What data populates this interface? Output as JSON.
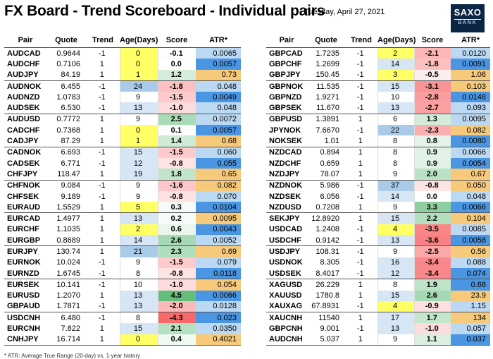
{
  "title": "FX Board - Trend Scoreboard - Individual pairs",
  "date": "Tuesday, April 27, 2021",
  "logo": {
    "line1": "SAXO",
    "line2": "BANK"
  },
  "headers": [
    "Pair",
    "Quote",
    "Trend",
    "Age(Days)",
    "Score",
    "ATR*"
  ],
  "footnote": "* ATR: Average True Range (20-day) vs. 1-year history",
  "colors": {
    "age_yellow": "#ffff66",
    "age_blue": "#b9d5ee",
    "atr_blue": "#3f8fe0",
    "atr_light": "#bcd9f3",
    "atr_orange": "#f7c97a",
    "score_red": "#f4a7a7",
    "score_green": "#a9d9a6"
  },
  "left_table": [
    {
      "pair": "AUDCAD",
      "quote": "0.9644",
      "trend": "-1",
      "age": "0",
      "score": "-0.1",
      "atr": "0.0065"
    },
    {
      "pair": "AUDCHF",
      "quote": "0.7106",
      "trend": "1",
      "age": "0",
      "score": "0.0",
      "atr": "0.0057"
    },
    {
      "pair": "AUDJPY",
      "quote": "84.19",
      "trend": "1",
      "age": "1",
      "score": "1.2",
      "atr": "0.73"
    },
    {
      "pair": "AUDNOK",
      "quote": "6.455",
      "trend": "-1",
      "age": "24",
      "score": "-1.8",
      "atr": "0.048"
    },
    {
      "pair": "AUDNZD",
      "quote": "1.0783",
      "trend": "-1",
      "age": "9",
      "score": "-1.5",
      "atr": "0.0049"
    },
    {
      "pair": "AUDSEK",
      "quote": "6.530",
      "trend": "-1",
      "age": "13",
      "score": "-1.0",
      "atr": "0.048"
    },
    {
      "pair": "AUDUSD",
      "quote": "0.7772",
      "trend": "1",
      "age": "9",
      "score": "2.5",
      "atr": "0.0072"
    },
    {
      "pair": "CADCHF",
      "quote": "0.7368",
      "trend": "1",
      "age": "0",
      "score": "0.1",
      "atr": "0.0057"
    },
    {
      "pair": "CADJPY",
      "quote": "87.29",
      "trend": "1",
      "age": "1",
      "score": "1.4",
      "atr": "0.68"
    },
    {
      "pair": "CADNOK",
      "quote": "6.693",
      "trend": "-1",
      "age": "15",
      "score": "-1.5",
      "atr": "0.060"
    },
    {
      "pair": "CADSEK",
      "quote": "6.771",
      "trend": "-1",
      "age": "12",
      "score": "-0.8",
      "atr": "0.055"
    },
    {
      "pair": "CHFJPY",
      "quote": "118.47",
      "trend": "1",
      "age": "19",
      "score": "1.8",
      "atr": "0.65"
    },
    {
      "pair": "CHFNOK",
      "quote": "9.084",
      "trend": "-1",
      "age": "9",
      "score": "-1.6",
      "atr": "0.082"
    },
    {
      "pair": "CHFSEK",
      "quote": "9.189",
      "trend": "-1",
      "age": "9",
      "score": "-0.8",
      "atr": "0.070"
    },
    {
      "pair": "EURAUD",
      "quote": "1.5529",
      "trend": "1",
      "age": "5",
      "score": "0.3",
      "atr": "0.0104"
    },
    {
      "pair": "EURCAD",
      "quote": "1.4977",
      "trend": "1",
      "age": "13",
      "score": "0.2",
      "atr": "0.0095"
    },
    {
      "pair": "EURCHF",
      "quote": "1.1035",
      "trend": "1",
      "age": "2",
      "score": "0.6",
      "atr": "0.0043"
    },
    {
      "pair": "EURGBP",
      "quote": "0.8689",
      "trend": "1",
      "age": "14",
      "score": "2.6",
      "atr": "0.0052"
    },
    {
      "pair": "EURJPY",
      "quote": "130.74",
      "trend": "1",
      "age": "21",
      "score": "2.3",
      "atr": "0.69"
    },
    {
      "pair": "EURNOK",
      "quote": "10.024",
      "trend": "-1",
      "age": "9",
      "score": "-1.5",
      "atr": "0.079"
    },
    {
      "pair": "EURNZD",
      "quote": "1.6745",
      "trend": "-1",
      "age": "8",
      "score": "-0.8",
      "atr": "0.0118"
    },
    {
      "pair": "EURSEK",
      "quote": "10.141",
      "trend": "-1",
      "age": "10",
      "score": "-1.0",
      "atr": "0.054"
    },
    {
      "pair": "EURUSD",
      "quote": "1.2070",
      "trend": "1",
      "age": "13",
      "score": "4.5",
      "atr": "0.0066"
    },
    {
      "pair": "GBPAUD",
      "quote": "1.7871",
      "trend": "-1",
      "age": "13",
      "score": "-2.0",
      "atr": "0.0128"
    },
    {
      "pair": "USDCNH",
      "quote": "6.480",
      "trend": "-1",
      "age": "8",
      "score": "-4.3",
      "atr": "0.023"
    },
    {
      "pair": "EURCNH",
      "quote": "7.822",
      "trend": "1",
      "age": "15",
      "score": "2.1",
      "atr": "0.0350"
    },
    {
      "pair": "CNHJPY",
      "quote": "16.714",
      "trend": "1",
      "age": "0",
      "score": "0.4",
      "atr": "0.4021"
    }
  ],
  "right_table": [
    {
      "pair": "GBPCAD",
      "quote": "1.7235",
      "trend": "-1",
      "age": "2",
      "score": "-2.1",
      "atr": "0.0120"
    },
    {
      "pair": "GBPCHF",
      "quote": "1.2699",
      "trend": "-1",
      "age": "14",
      "score": "-1.8",
      "atr": "0.0091"
    },
    {
      "pair": "GBPJPY",
      "quote": "150.45",
      "trend": "-1",
      "age": "3",
      "score": "-0.5",
      "atr": "1.06"
    },
    {
      "pair": "GBPNOK",
      "quote": "11.535",
      "trend": "-1",
      "age": "15",
      "score": "-3.1",
      "atr": "0.103"
    },
    {
      "pair": "GBPNZD",
      "quote": "1.9271",
      "trend": "-1",
      "age": "10",
      "score": "-2.8",
      "atr": "0.0148"
    },
    {
      "pair": "GBPSEK",
      "quote": "11.670",
      "trend": "-1",
      "age": "13",
      "score": "-2.7",
      "atr": "0.093"
    },
    {
      "pair": "GBPUSD",
      "quote": "1.3891",
      "trend": "1",
      "age": "6",
      "score": "1.3",
      "atr": "0.0095"
    },
    {
      "pair": "JPYNOK",
      "quote": "7.6670",
      "trend": "-1",
      "age": "22",
      "score": "-2.3",
      "atr": "0.082"
    },
    {
      "pair": "NOKSEK",
      "quote": "1.01",
      "trend": "1",
      "age": "8",
      "score": "0.8",
      "atr": "0.0080"
    },
    {
      "pair": "NZDCAD",
      "quote": "0.894",
      "trend": "1",
      "age": "8",
      "score": "0.9",
      "atr": "0.0066"
    },
    {
      "pair": "NZDCHF",
      "quote": "0.659",
      "trend": "1",
      "age": "8",
      "score": "0.9",
      "atr": "0.0054"
    },
    {
      "pair": "NZDJPY",
      "quote": "78.07",
      "trend": "1",
      "age": "9",
      "score": "2.0",
      "atr": "0.67"
    },
    {
      "pair": "NZDNOK",
      "quote": "5.986",
      "trend": "-1",
      "age": "37",
      "score": "-0.8",
      "atr": "0.050"
    },
    {
      "pair": "NZDSEK",
      "quote": "6.056",
      "trend": "-1",
      "age": "14",
      "score": "0.0",
      "atr": "0.048"
    },
    {
      "pair": "NZDUSD",
      "quote": "0.7208",
      "trend": "1",
      "age": "9",
      "score": "3.3",
      "atr": "0.0066"
    },
    {
      "pair": "SEKJPY",
      "quote": "12.8920",
      "trend": "1",
      "age": "15",
      "score": "2.2",
      "atr": "0.104"
    },
    {
      "pair": "USDCAD",
      "quote": "1.2408",
      "trend": "-1",
      "age": "4",
      "score": "-3.5",
      "atr": "0.0085"
    },
    {
      "pair": "USDCHF",
      "quote": "0.9142",
      "trend": "-1",
      "age": "13",
      "score": "-3.6",
      "atr": "0.0058"
    },
    {
      "pair": "USDJPY",
      "quote": "108.31",
      "trend": "-1",
      "age": "9",
      "score": "-2.5",
      "atr": "0.56"
    },
    {
      "pair": "USDNOK",
      "quote": "8.305",
      "trend": "-1",
      "age": "16",
      "score": "-3.4",
      "atr": "0.088"
    },
    {
      "pair": "USDSEK",
      "quote": "8.4017",
      "trend": "-1",
      "age": "12",
      "score": "-3.4",
      "atr": "0.074"
    },
    {
      "pair": "XAGUSD",
      "quote": "26.229",
      "trend": "1",
      "age": "8",
      "score": "1.9",
      "atr": "0.68"
    },
    {
      "pair": "XAUUSD",
      "quote": "1780.8",
      "trend": "1",
      "age": "15",
      "score": "2.6",
      "atr": "23.9"
    },
    {
      "pair": "XAUXAG",
      "quote": "67.8931",
      "trend": "-1",
      "age": "4",
      "score": "-0.9",
      "atr": "1.15"
    },
    {
      "pair": "XAUCNH",
      "quote": "11540",
      "trend": "1",
      "age": "17",
      "score": "1.7",
      "atr": "134"
    },
    {
      "pair": "GBPCNH",
      "quote": "9.001",
      "trend": "-1",
      "age": "13",
      "score": "-1.0",
      "atr": "0.057"
    },
    {
      "pair": "AUDCNH",
      "quote": "5.037",
      "trend": "1",
      "age": "9",
      "score": "1.1",
      "atr": "0.037"
    }
  ]
}
